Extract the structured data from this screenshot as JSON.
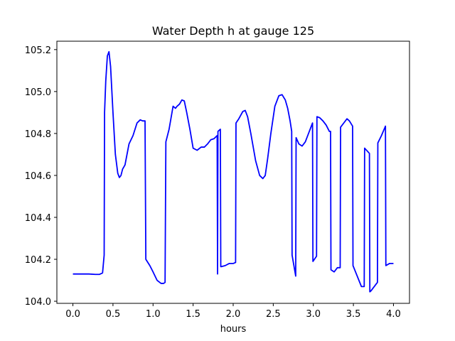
{
  "chart_data": {
    "type": "line",
    "title": "Water Depth h at gauge 125",
    "xlabel": "hours",
    "ylabel": "",
    "xlim": [
      -0.2,
      4.2
    ],
    "ylim": [
      103.99,
      105.24
    ],
    "xticks": [
      0.0,
      0.5,
      1.0,
      1.5,
      2.0,
      2.5,
      3.0,
      3.5,
      4.0
    ],
    "xtick_labels": [
      "0.0",
      "0.5",
      "1.0",
      "1.5",
      "2.0",
      "2.5",
      "3.0",
      "3.5",
      "4.0"
    ],
    "yticks": [
      104.0,
      104.2,
      104.4,
      104.6,
      104.8,
      105.0,
      105.2
    ],
    "ytick_labels": [
      "104.0",
      "104.2",
      "104.4",
      "104.6",
      "104.8",
      "105.0",
      "105.2"
    ],
    "grid": false,
    "series": [
      {
        "name": "",
        "color": "#0000ff",
        "x": [
          0.0,
          0.2,
          0.28,
          0.33,
          0.37,
          0.39,
          0.395,
          0.41,
          0.43,
          0.45,
          0.47,
          0.5,
          0.53,
          0.56,
          0.58,
          0.6,
          0.62,
          0.65,
          0.7,
          0.75,
          0.8,
          0.84,
          0.87,
          0.9,
          0.91,
          0.96,
          1.0,
          1.05,
          1.1,
          1.13,
          1.15,
          1.16,
          1.2,
          1.25,
          1.28,
          1.3,
          1.33,
          1.36,
          1.39,
          1.42,
          1.46,
          1.5,
          1.55,
          1.6,
          1.64,
          1.68,
          1.72,
          1.76,
          1.8,
          1.805,
          1.81,
          1.84,
          1.845,
          1.85,
          1.9,
          1.95,
          2.0,
          2.03,
          2.035,
          2.07,
          2.12,
          2.15,
          2.18,
          2.22,
          2.28,
          2.33,
          2.37,
          2.4,
          2.43,
          2.47,
          2.52,
          2.57,
          2.61,
          2.65,
          2.68,
          2.71,
          2.73,
          2.735,
          2.78,
          2.785,
          2.82,
          2.86,
          2.9,
          2.95,
          2.99,
          2.995,
          3.04,
          3.045,
          3.08,
          3.12,
          3.16,
          3.2,
          3.215,
          3.22,
          3.26,
          3.3,
          3.335,
          3.34,
          3.38,
          3.42,
          3.45,
          3.49,
          3.495,
          3.6,
          3.635,
          3.64,
          3.7,
          3.705,
          3.72,
          3.8,
          3.805,
          3.85,
          3.9,
          3.905,
          3.95,
          4.0
        ],
        "values": [
          104.13,
          104.13,
          104.128,
          104.128,
          104.135,
          104.22,
          104.9,
          105.05,
          105.17,
          105.19,
          105.12,
          104.9,
          104.7,
          104.61,
          104.59,
          104.6,
          104.63,
          104.65,
          104.75,
          104.79,
          104.85,
          104.865,
          104.86,
          104.86,
          104.2,
          104.17,
          104.14,
          104.1,
          104.085,
          104.085,
          104.09,
          104.76,
          104.82,
          104.93,
          104.92,
          104.93,
          104.94,
          104.96,
          104.955,
          104.9,
          104.82,
          104.73,
          104.72,
          104.735,
          104.735,
          104.75,
          104.77,
          104.775,
          104.79,
          104.13,
          104.81,
          104.82,
          104.165,
          104.165,
          104.17,
          104.18,
          104.18,
          104.185,
          104.85,
          104.87,
          104.905,
          104.91,
          104.88,
          104.8,
          104.67,
          104.6,
          104.585,
          104.6,
          104.68,
          104.8,
          104.93,
          104.98,
          104.985,
          104.96,
          104.92,
          104.86,
          104.81,
          104.22,
          104.12,
          104.78,
          104.75,
          104.74,
          104.76,
          104.81,
          104.85,
          104.19,
          104.215,
          104.88,
          104.875,
          104.86,
          104.84,
          104.81,
          104.81,
          104.15,
          104.14,
          104.16,
          104.16,
          104.83,
          104.85,
          104.87,
          104.86,
          104.835,
          104.17,
          104.07,
          104.07,
          104.73,
          104.705,
          104.045,
          104.05,
          104.09,
          104.755,
          104.79,
          104.835,
          104.17,
          104.18,
          104.18
        ]
      }
    ]
  }
}
